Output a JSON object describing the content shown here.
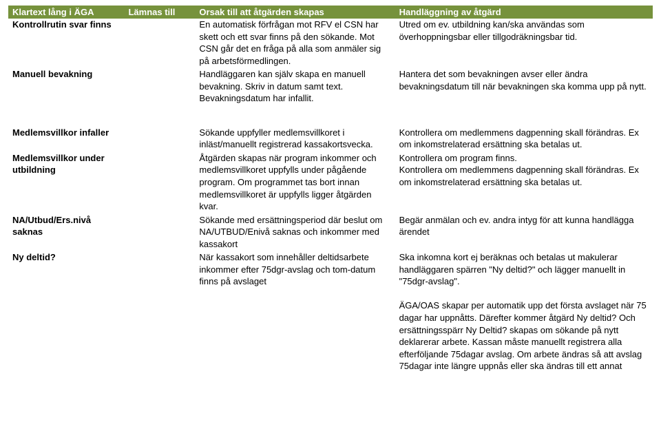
{
  "header": {
    "col1": "Klartext lång i ÄGA",
    "col2": "Lämnas till",
    "col3": "Orsak till att åtgärden skapas",
    "col4": "Handläggning av åtgärd"
  },
  "rows": [
    {
      "c1": "Kontrollrutin svar finns",
      "c2": "",
      "c3": "En automatisk förfrågan mot RFV el CSN har skett och ett svar finns på den sökande. Mot CSN går det en fråga på alla som anmäler sig på arbetsförmedlingen.",
      "c4": "Utred om ev. utbildning kan/ska användas som överhoppningsbar eller tillgodräkningsbar tid."
    },
    {
      "c1": "Manuell bevakning",
      "c2": "",
      "c3": "Handläggaren kan själv skapa en manuell bevakning. Skriv in datum samt text. Bevakningsdatum har infallit.",
      "c4": "Hantera det som bevakningen avser eller ändra bevakningsdatum till när bevakningen ska komma upp på nytt."
    }
  ],
  "rows2": [
    {
      "c1": "Medlemsvillkor infaller",
      "c2": "",
      "c3": "Sökande uppfyller medlemsvillkoret i inläst/manuellt registrerad kassakortsvecka.",
      "c4": "Kontrollera om medlemmens dagpenning skall förändras. Ex om inkomstrelaterad ersättning ska betalas ut."
    },
    {
      "c1": "Medlemsvillkor under utbildning",
      "c2": "",
      "c3": "Åtgärden skapas när program inkommer och medlemsvillkoret uppfylls under pågående program. Om programmet tas bort innan medlemsvillkoret är uppfylls ligger åtgärden kvar.",
      "c4": "Kontrollera om program finns.\nKontrollera om medlemmens dagpenning skall förändras. Ex om inkomstrelaterad ersättning ska betalas ut."
    },
    {
      "c1": "NA/Utbud/Ers.nivå saknas",
      "c2": "",
      "c3": "Sökande med ersättningsperiod där beslut om NA/UTBUD/Enivå saknas och inkommer med kassakort",
      "c4": "Begär anmälan och ev. andra intyg för att kunna handlägga ärendet"
    },
    {
      "c1": "Ny deltid?",
      "c2": "",
      "c3": "När kassakort som innehåller deltidsarbete inkommer efter 75dgr-avslag och tom-datum finns på avslaget",
      "c4": "Ska inkomna kort ej beräknas och betalas ut makulerar handläggaren spärren \"Ny deltid?\" och lägger manuellt in \"75dgr-avslag\".\n\nÄGA/OAS skapar per automatik upp det första avslaget när 75 dagar har uppnåtts. Därefter kommer åtgärd Ny deltid? Och ersättningsspärr Ny Deltid? skapas om sökande på nytt deklarerar arbete. Kassan måste manuellt registrera alla efterföljande 75dagar avslag. Om arbete ändras så att avslag 75dagar inte längre uppnås eller ska ändras till ett annat"
    }
  ]
}
